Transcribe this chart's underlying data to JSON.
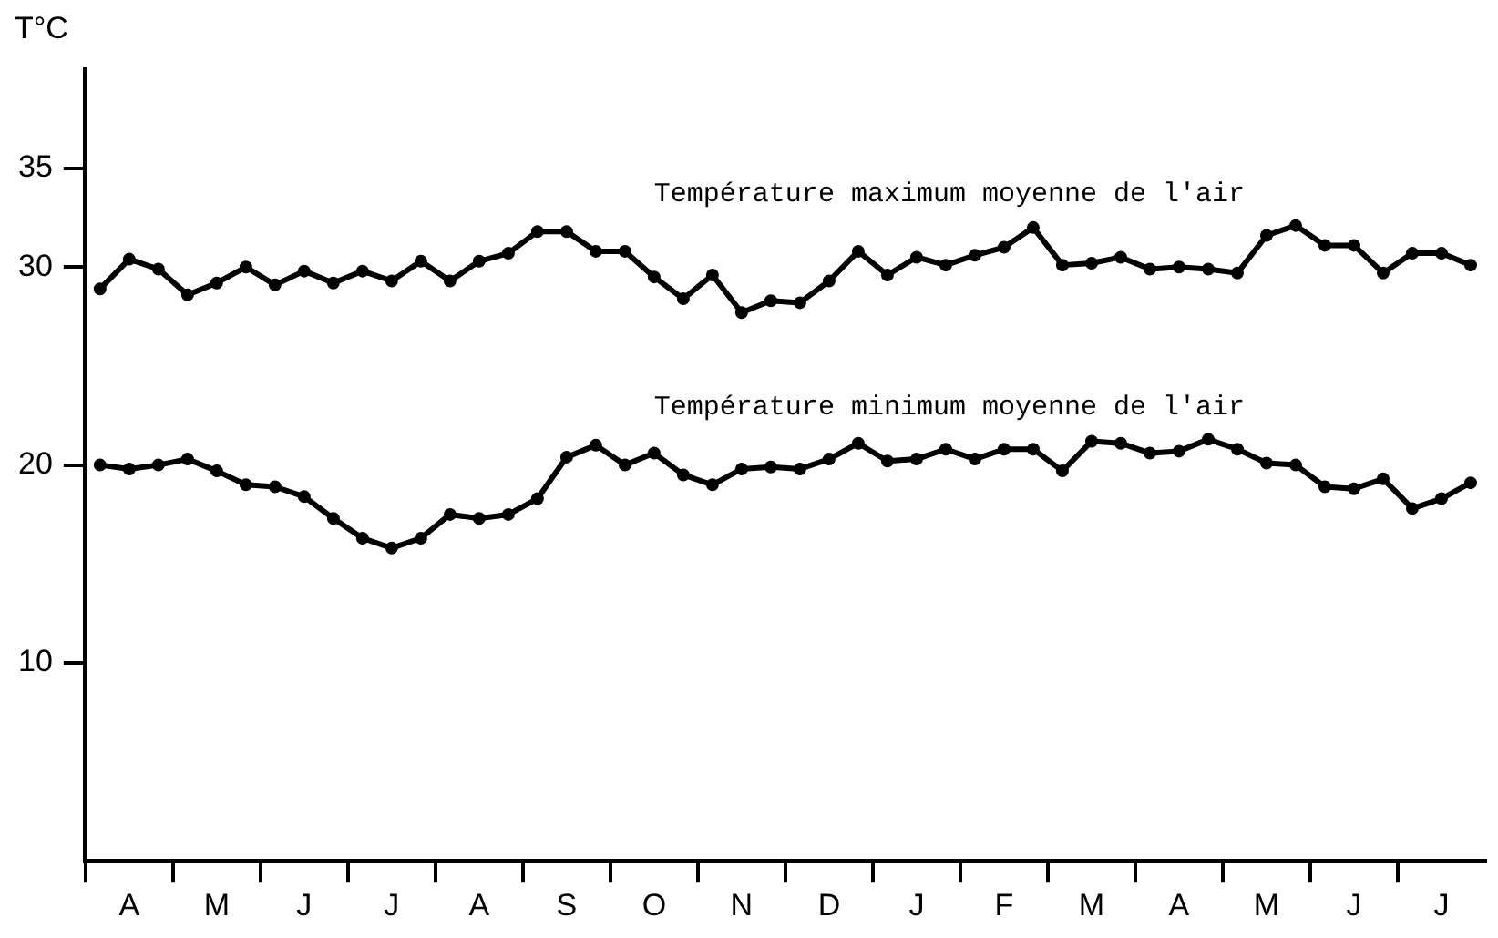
{
  "chart_data": {
    "type": "line",
    "ylabel": "T°C",
    "categories": [
      null,
      "A",
      null,
      null,
      "M",
      null,
      null,
      "J",
      null,
      null,
      "J",
      null,
      null,
      "A",
      null,
      null,
      "S",
      null,
      null,
      "O",
      null,
      null,
      "N",
      null,
      null,
      "D",
      null,
      null,
      "J",
      null,
      null,
      "F",
      null,
      null,
      "M",
      null,
      null,
      "A",
      null,
      null,
      "M",
      null,
      null,
      "J",
      null,
      null,
      "J",
      null
    ],
    "series": [
      {
        "name": "Température maximum moyenne de l'air",
        "color": "#000000",
        "values": [
          28.9,
          30.4,
          29.9,
          28.6,
          29.2,
          30.0,
          29.1,
          29.8,
          29.2,
          29.8,
          29.3,
          30.3,
          29.3,
          30.3,
          30.7,
          31.8,
          31.8,
          30.8,
          30.8,
          29.5,
          28.4,
          29.6,
          27.7,
          28.3,
          28.2,
          29.3,
          30.8,
          29.6,
          30.5,
          30.1,
          30.6,
          31.0,
          32.0,
          30.1,
          30.2,
          30.5,
          29.9,
          30.0,
          29.9,
          29.7,
          31.6,
          32.1,
          31.1,
          31.1,
          29.7,
          30.7,
          30.7,
          30.1
        ]
      },
      {
        "name": "Température minimum moyenne de l'air",
        "color": "#000000",
        "values": [
          20.0,
          19.8,
          20.0,
          20.3,
          19.7,
          19.0,
          18.9,
          18.4,
          17.3,
          16.3,
          15.8,
          16.3,
          17.5,
          17.3,
          17.5,
          18.3,
          20.4,
          21.0,
          20.0,
          20.6,
          19.5,
          19.0,
          19.8,
          19.9,
          19.8,
          20.3,
          21.1,
          20.2,
          20.3,
          20.8,
          20.3,
          20.8,
          20.8,
          19.7,
          21.2,
          21.1,
          20.6,
          20.7,
          21.3,
          20.8,
          20.1,
          20.0,
          18.9,
          18.8,
          19.3,
          17.8,
          18.3,
          19.1
        ]
      }
    ],
    "ylim": [
      0,
      40
    ],
    "yticks": [
      10,
      20,
      30,
      35
    ],
    "grid": false,
    "legend": false,
    "marker": "circle",
    "line_style": "solid"
  }
}
